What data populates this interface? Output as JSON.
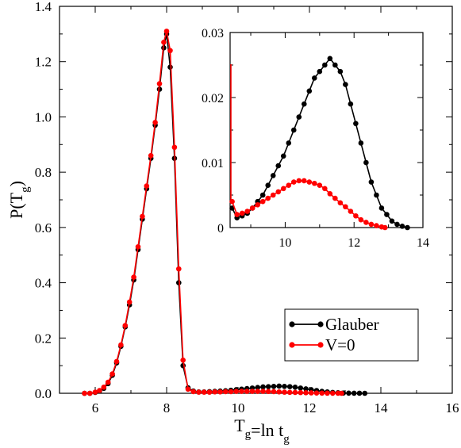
{
  "chart_data": {
    "type": "line",
    "xlabel": "T_g=ln t_g",
    "ylabel": "P(T_g)",
    "xlim": [
      5,
      16
    ],
    "ylim": [
      0,
      1.4
    ],
    "xticks": [
      "6",
      "8",
      "10",
      "12",
      "14",
      "16"
    ],
    "yticks": [
      "0.0",
      "0.2",
      "0.4",
      "0.6",
      "0.8",
      "1.0",
      "1.2",
      "1.4"
    ],
    "legend_position": "bottom-right",
    "series": [
      {
        "name": "Glauber",
        "color": "#000000",
        "x": [
          5.7,
          5.85,
          6.0,
          6.12,
          6.24,
          6.36,
          6.48,
          6.6,
          6.72,
          6.84,
          6.96,
          7.08,
          7.2,
          7.32,
          7.44,
          7.56,
          7.68,
          7.8,
          7.92,
          8.0,
          8.1,
          8.22,
          8.34,
          8.46,
          8.6,
          8.75,
          8.9,
          9.05,
          9.2,
          9.35,
          9.5,
          9.65,
          9.8,
          9.95,
          10.1,
          10.25,
          10.4,
          10.55,
          10.7,
          10.85,
          11.0,
          11.15,
          11.3,
          11.45,
          11.6,
          11.75,
          11.9,
          12.05,
          12.2,
          12.35,
          12.5,
          12.65,
          12.8,
          12.95,
          13.1,
          13.25,
          13.4,
          13.55
        ],
        "y": [
          0.0,
          0.0,
          0.003,
          0.008,
          0.018,
          0.035,
          0.065,
          0.11,
          0.17,
          0.24,
          0.32,
          0.41,
          0.52,
          0.63,
          0.74,
          0.85,
          0.97,
          1.1,
          1.25,
          1.3,
          1.18,
          0.85,
          0.4,
          0.1,
          0.02,
          0.008,
          0.005,
          0.005,
          0.006,
          0.007,
          0.008,
          0.009,
          0.011,
          0.013,
          0.015,
          0.017,
          0.019,
          0.021,
          0.023,
          0.024,
          0.025,
          0.026,
          0.025,
          0.024,
          0.022,
          0.019,
          0.016,
          0.013,
          0.01,
          0.007,
          0.005,
          0.003,
          0.002,
          0.001,
          0.0005,
          0.0003,
          0.0001,
          0.0
        ]
      },
      {
        "name": "V=0",
        "color": "#ff0000",
        "x": [
          5.7,
          5.85,
          6.0,
          6.12,
          6.24,
          6.36,
          6.48,
          6.6,
          6.72,
          6.84,
          6.96,
          7.08,
          7.2,
          7.32,
          7.44,
          7.56,
          7.68,
          7.8,
          7.92,
          8.0,
          8.1,
          8.22,
          8.34,
          8.46,
          8.6,
          8.75,
          8.9,
          9.05,
          9.2,
          9.35,
          9.5,
          9.65,
          9.8,
          9.95,
          10.1,
          10.25,
          10.4,
          10.55,
          10.7,
          10.85,
          11.0,
          11.15,
          11.3,
          11.45,
          11.6,
          11.75,
          11.9,
          12.05,
          12.2,
          12.35,
          12.5,
          12.65,
          12.8,
          12.9
        ],
        "y": [
          0.0,
          0.0,
          0.004,
          0.01,
          0.022,
          0.04,
          0.07,
          0.115,
          0.175,
          0.245,
          0.33,
          0.42,
          0.53,
          0.64,
          0.75,
          0.86,
          0.98,
          1.12,
          1.27,
          1.31,
          1.24,
          0.89,
          0.45,
          0.12,
          0.015,
          0.006,
          0.004,
          0.004,
          0.004,
          0.005,
          0.005,
          0.006,
          0.006,
          0.007,
          0.007,
          0.007,
          0.007,
          0.007,
          0.007,
          0.0065,
          0.006,
          0.005,
          0.004,
          0.0035,
          0.003,
          0.0025,
          0.002,
          0.0015,
          0.001,
          0.0007,
          0.0004,
          0.0002,
          0.0001,
          0.0
        ]
      }
    ],
    "inset": {
      "xlim": [
        8.4,
        14
      ],
      "ylim": [
        0,
        0.03
      ],
      "xticks": [
        "10",
        "12",
        "14"
      ],
      "yticks": [
        "0",
        "0.01",
        "0.02",
        "0.03"
      ],
      "series": [
        {
          "name": "Glauber",
          "color": "#000000",
          "x": [
            8.46,
            8.6,
            8.75,
            8.9,
            9.05,
            9.2,
            9.35,
            9.5,
            9.65,
            9.8,
            9.95,
            10.1,
            10.25,
            10.4,
            10.55,
            10.7,
            10.85,
            11.0,
            11.15,
            11.3,
            11.45,
            11.6,
            11.75,
            11.9,
            12.05,
            12.2,
            12.35,
            12.5,
            12.65,
            12.8,
            12.95,
            13.1,
            13.25,
            13.4,
            13.55
          ],
          "y": [
            0.003,
            0.0015,
            0.0018,
            0.0022,
            0.003,
            0.004,
            0.005,
            0.0065,
            0.008,
            0.0095,
            0.011,
            0.013,
            0.015,
            0.017,
            0.019,
            0.021,
            0.023,
            0.024,
            0.025,
            0.026,
            0.025,
            0.024,
            0.022,
            0.019,
            0.016,
            0.013,
            0.01,
            0.007,
            0.005,
            0.003,
            0.002,
            0.001,
            0.0005,
            0.0002,
            0.0
          ]
        },
        {
          "name": "V=0",
          "color": "#ff0000",
          "x": [
            8.46,
            8.6,
            8.75,
            8.9,
            9.05,
            9.2,
            9.35,
            9.5,
            9.65,
            9.8,
            9.95,
            10.1,
            10.25,
            10.4,
            10.55,
            10.7,
            10.85,
            11.0,
            11.15,
            11.3,
            11.45,
            11.6,
            11.75,
            11.9,
            12.05,
            12.2,
            12.35,
            12.5,
            12.65,
            12.8,
            12.9
          ],
          "y": [
            0.004,
            0.002,
            0.0022,
            0.0025,
            0.003,
            0.0035,
            0.004,
            0.0045,
            0.005,
            0.0055,
            0.006,
            0.0065,
            0.007,
            0.0072,
            0.0072,
            0.007,
            0.0068,
            0.0065,
            0.006,
            0.0052,
            0.0045,
            0.0038,
            0.0032,
            0.0025,
            0.0018,
            0.0012,
            0.0008,
            0.0005,
            0.0003,
            0.0001,
            0.0
          ]
        }
      ]
    }
  }
}
